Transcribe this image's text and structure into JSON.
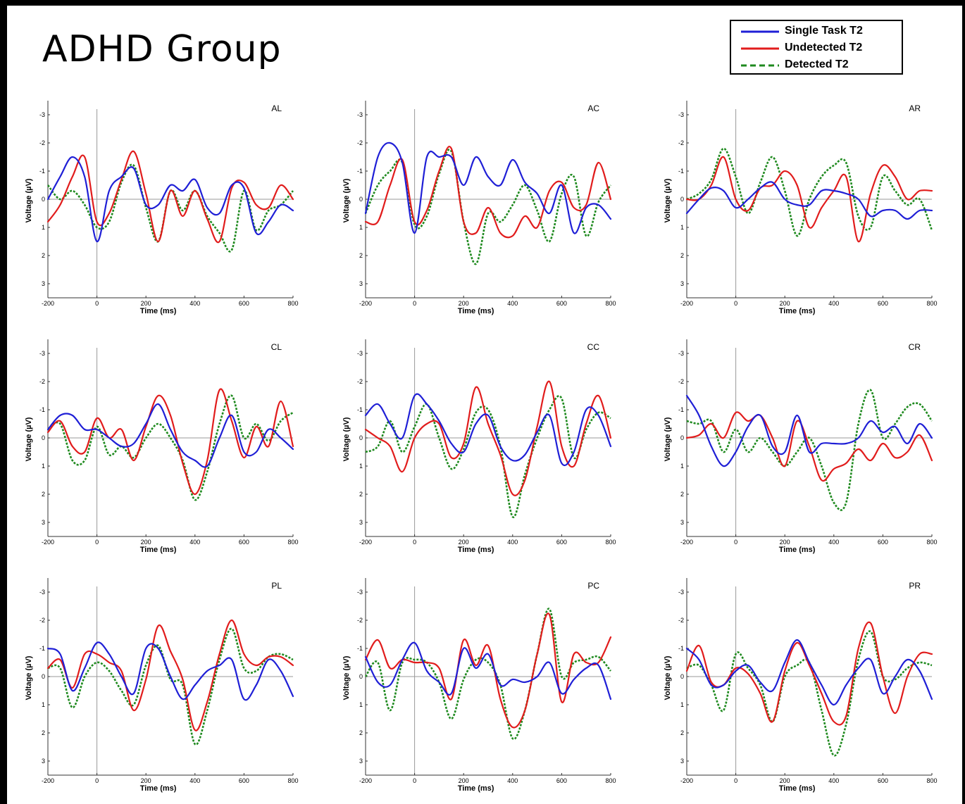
{
  "figure": {
    "title": "ADHD Group"
  },
  "legend": [
    {
      "label": "Single Task T2",
      "color": "#1f1fd6",
      "style": "solid"
    },
    {
      "label": "Undetected T2",
      "color": "#e11c1c",
      "style": "solid"
    },
    {
      "label": "Detected T2",
      "color": "#1f8a1f",
      "style": "dashed"
    }
  ],
  "chart_data": [
    {
      "type": "line",
      "title": "AL",
      "xlabel": "Time (ms)",
      "ylabel": "Voltage (µV)",
      "xlim": [
        -200,
        800
      ],
      "ylim": [
        -3.5,
        3.5
      ],
      "y_inverted": true,
      "xticks": [
        -200,
        0,
        200,
        400,
        600,
        800
      ],
      "yticks": [
        -3,
        -2,
        -1,
        0,
        1,
        2,
        3
      ],
      "x": [
        -200,
        -150,
        -100,
        -50,
        0,
        50,
        100,
        150,
        200,
        250,
        300,
        350,
        400,
        450,
        500,
        550,
        600,
        650,
        700,
        750,
        800
      ],
      "series": [
        {
          "name": "Single Task T2",
          "values": [
            0,
            -0.8,
            -1.5,
            -0.8,
            1.5,
            -0.3,
            -0.8,
            -1.1,
            0.2,
            0.2,
            -0.5,
            -0.3,
            -0.7,
            0.3,
            0.5,
            -0.5,
            -0.4,
            1.2,
            0.8,
            0.2,
            0.4
          ]
        },
        {
          "name": "Undetected T2",
          "values": [
            0.8,
            0.2,
            -0.8,
            -1.5,
            0.8,
            0.5,
            -0.7,
            -1.7,
            -0.2,
            1.5,
            -0.3,
            0.6,
            -0.3,
            0.7,
            1.5,
            -0.4,
            -0.6,
            0.2,
            0.3,
            -0.5,
            0
          ]
        },
        {
          "name": "Detected T2",
          "values": [
            -0.5,
            0,
            -0.3,
            0.2,
            1,
            0.8,
            -0.6,
            -1.2,
            0.3,
            1.5,
            -0.3,
            0.4,
            -0.3,
            0.6,
            1.2,
            1.8,
            -0.3,
            1.1,
            0.4,
            0.2,
            -0.3
          ]
        }
      ]
    },
    {
      "type": "line",
      "title": "AC",
      "xlabel": "Time (ms)",
      "ylabel": "Voltage (µV)",
      "xlim": [
        -200,
        800
      ],
      "ylim": [
        -3.5,
        3.5
      ],
      "y_inverted": true,
      "xticks": [
        -200,
        0,
        200,
        400,
        600,
        800
      ],
      "yticks": [
        -3,
        -2,
        -1,
        0,
        1,
        2,
        3
      ],
      "x": [
        -200,
        -150,
        -100,
        -50,
        0,
        50,
        100,
        150,
        200,
        250,
        300,
        350,
        400,
        450,
        500,
        550,
        600,
        650,
        700,
        750,
        800
      ],
      "series": [
        {
          "name": "Single Task T2",
          "values": [
            0.5,
            -1.5,
            -2,
            -1.3,
            1.2,
            -1.5,
            -1.5,
            -1.5,
            -0.5,
            -1.5,
            -0.8,
            -0.5,
            -1.4,
            -0.6,
            -0.2,
            0.5,
            -0.5,
            1.2,
            0.3,
            0.2,
            0.7
          ]
        },
        {
          "name": "Undetected T2",
          "values": [
            0.8,
            0.8,
            -0.5,
            -1.4,
            0.8,
            0.4,
            -1,
            -1.8,
            0.8,
            1.2,
            0.3,
            1.2,
            1.3,
            0.6,
            1,
            -0.3,
            -0.6,
            0.3,
            0.2,
            -1.3,
            0
          ]
        },
        {
          "name": "Detected T2",
          "values": [
            0.5,
            -0.5,
            -1,
            -1.3,
            0.9,
            0.6,
            -0.9,
            -1.7,
            0.8,
            2.3,
            0.5,
            0.8,
            0.2,
            -0.5,
            0.4,
            1.5,
            -0.2,
            -0.8,
            1.3,
            0.1,
            -0.5
          ]
        }
      ]
    },
    {
      "type": "line",
      "title": "AR",
      "xlabel": "Time (ms)",
      "ylabel": "Voltage (µV)",
      "xlim": [
        -200,
        800
      ],
      "ylim": [
        -3.5,
        3.5
      ],
      "y_inverted": true,
      "xticks": [
        -200,
        0,
        200,
        400,
        600,
        800
      ],
      "yticks": [
        -3,
        -2,
        -1,
        0,
        1,
        2,
        3
      ],
      "x": [
        -200,
        -150,
        -100,
        -50,
        0,
        50,
        100,
        150,
        200,
        250,
        300,
        350,
        400,
        450,
        500,
        550,
        600,
        650,
        700,
        750,
        800
      ],
      "series": [
        {
          "name": "Single Task T2",
          "values": [
            0.5,
            0,
            -0.4,
            -0.3,
            0.3,
            0,
            -0.4,
            -0.6,
            0,
            0.2,
            0.2,
            -0.3,
            -0.3,
            -0.2,
            0,
            0.6,
            0.4,
            0.4,
            0.7,
            0.4,
            0.4
          ]
        },
        {
          "name": "Undetected T2",
          "values": [
            0,
            0,
            -0.5,
            -1.5,
            0,
            0.4,
            -0.4,
            -0.5,
            -1,
            -0.5,
            1,
            0.3,
            -0.3,
            -0.8,
            1.5,
            -0.2,
            -1.2,
            -0.8,
            0,
            -0.3,
            -0.3
          ]
        },
        {
          "name": "Detected T2",
          "values": [
            0,
            -0.2,
            -0.7,
            -1.8,
            -0.8,
            0.5,
            -0.6,
            -1.5,
            -0.3,
            1.3,
            0,
            -0.8,
            -1.2,
            -1.3,
            0.6,
            1,
            -0.8,
            -0.3,
            0.2,
            0,
            1.1
          ]
        }
      ]
    },
    {
      "type": "line",
      "title": "CL",
      "xlabel": "Time (ms)",
      "ylabel": "Voltage (µV)",
      "xlim": [
        -200,
        800
      ],
      "ylim": [
        -3.5,
        3.5
      ],
      "y_inverted": true,
      "xticks": [
        -200,
        0,
        200,
        400,
        600,
        800
      ],
      "yticks": [
        -3,
        -2,
        -1,
        0,
        1,
        2,
        3
      ],
      "x": [
        -200,
        -150,
        -100,
        -50,
        0,
        50,
        100,
        150,
        200,
        250,
        300,
        350,
        400,
        450,
        500,
        550,
        600,
        650,
        700,
        750,
        800
      ],
      "series": [
        {
          "name": "Single Task T2",
          "values": [
            -0.3,
            -0.8,
            -0.8,
            -0.3,
            -0.3,
            0,
            0.3,
            0.2,
            -0.5,
            -1.2,
            -0.3,
            0.5,
            0.8,
            1,
            0,
            -0.8,
            0.5,
            0.5,
            -0.3,
            0,
            0.4
          ]
        },
        {
          "name": "Undetected T2",
          "values": [
            -0.2,
            -0.6,
            0.3,
            0.5,
            -0.7,
            0,
            -0.3,
            0.8,
            -0.4,
            -1.5,
            -0.8,
            0.9,
            2,
            0.8,
            -1.7,
            -0.6,
            0.7,
            -0.4,
            0.3,
            -1.3,
            0.3
          ]
        },
        {
          "name": "Detected T2",
          "values": [
            -0.3,
            -0.5,
            0.8,
            0.8,
            -0.4,
            0.6,
            0.3,
            0.7,
            0,
            -0.5,
            0,
            0.8,
            2.2,
            1.2,
            -0.5,
            -1.5,
            0,
            -0.5,
            0.1,
            -0.6,
            -0.9
          ]
        }
      ]
    },
    {
      "type": "line",
      "title": "CC",
      "xlabel": "Time (ms)",
      "ylabel": "Voltage (µV)",
      "xlim": [
        -200,
        800
      ],
      "ylim": [
        -3.5,
        3.5
      ],
      "y_inverted": true,
      "xticks": [
        -200,
        0,
        200,
        400,
        600,
        800
      ],
      "yticks": [
        -3,
        -2,
        -1,
        0,
        1,
        2,
        3
      ],
      "x": [
        -200,
        -150,
        -100,
        -50,
        0,
        50,
        100,
        150,
        200,
        250,
        300,
        350,
        400,
        450,
        500,
        550,
        600,
        650,
        700,
        750,
        800
      ],
      "series": [
        {
          "name": "Single Task T2",
          "values": [
            -0.8,
            -1.2,
            -0.5,
            0,
            -1.5,
            -1.2,
            -0.6,
            0.2,
            0.5,
            -0.5,
            -0.8,
            0.3,
            0.8,
            0.6,
            -0.2,
            -0.8,
            0.9,
            0.5,
            -1,
            -0.8,
            0.3
          ]
        },
        {
          "name": "Undetected T2",
          "values": [
            -0.3,
            0,
            0.3,
            1.2,
            0,
            -0.5,
            -0.5,
            0.7,
            0.2,
            -1.8,
            -0.5,
            0.6,
            2,
            1.5,
            -0.4,
            -2,
            0.3,
            1,
            -0.5,
            -1.5,
            0
          ]
        },
        {
          "name": "Detected T2",
          "values": [
            0.5,
            0.3,
            -0.6,
            0.5,
            -0.4,
            -1.2,
            0,
            1.1,
            0.4,
            -0.9,
            -1,
            0.3,
            2.8,
            1.3,
            0,
            -1,
            -1.4,
            0.7,
            -0.3,
            -0.9,
            -0.7
          ]
        }
      ]
    },
    {
      "type": "line",
      "title": "CR",
      "xlabel": "Time (ms)",
      "ylabel": "Voltage (µV)",
      "xlim": [
        -200,
        800
      ],
      "ylim": [
        -3.5,
        3.5
      ],
      "y_inverted": true,
      "xticks": [
        -200,
        0,
        200,
        400,
        600,
        800
      ],
      "yticks": [
        -3,
        -2,
        -1,
        0,
        1,
        2,
        3
      ],
      "x": [
        -200,
        -150,
        -100,
        -50,
        0,
        50,
        100,
        150,
        200,
        250,
        300,
        350,
        400,
        450,
        500,
        550,
        600,
        650,
        700,
        750,
        800
      ],
      "series": [
        {
          "name": "Single Task T2",
          "values": [
            -1.5,
            -0.8,
            0.3,
            1,
            0.5,
            -0.4,
            -0.8,
            0.3,
            0.5,
            -0.8,
            0.5,
            0.2,
            0.2,
            0.2,
            0,
            -0.6,
            -0.2,
            -0.4,
            0.2,
            -0.5,
            0
          ]
        },
        {
          "name": "Undetected T2",
          "values": [
            0,
            -0.1,
            -0.5,
            0,
            -0.9,
            -0.6,
            -0.8,
            0,
            1,
            -0.6,
            0.3,
            1.5,
            1.1,
            0.9,
            0.4,
            0.8,
            0.2,
            0.7,
            0.5,
            -0.1,
            0.8
          ]
        },
        {
          "name": "Detected T2",
          "values": [
            -0.6,
            -0.5,
            -0.6,
            0.5,
            -0.3,
            0.5,
            0,
            0.5,
            1,
            0.5,
            0,
            1,
            2.3,
            2.3,
            -0.5,
            -1.7,
            0,
            -0.5,
            -1.1,
            -1.2,
            -0.6
          ]
        }
      ]
    },
    {
      "type": "line",
      "title": "PL",
      "xlabel": "Time (ms)",
      "ylabel": "Voltage (µV)",
      "xlim": [
        -200,
        800
      ],
      "ylim": [
        -3.5,
        3.5
      ],
      "y_inverted": true,
      "xticks": [
        -200,
        0,
        200,
        400,
        600,
        800
      ],
      "yticks": [
        -3,
        -2,
        -1,
        0,
        1,
        2,
        3
      ],
      "x": [
        -200,
        -150,
        -100,
        -50,
        0,
        50,
        100,
        150,
        200,
        250,
        300,
        350,
        400,
        450,
        500,
        550,
        600,
        650,
        700,
        750,
        800
      ],
      "series": [
        {
          "name": "Single Task T2",
          "values": [
            -1,
            -0.8,
            0.5,
            -0.3,
            -1.2,
            -0.8,
            0,
            0.6,
            -1,
            -1,
            0,
            0.8,
            0.3,
            -0.2,
            -0.4,
            -0.6,
            0.8,
            0.3,
            -0.6,
            -0.2,
            0.7
          ]
        },
        {
          "name": "Undetected T2",
          "values": [
            -0.3,
            -0.6,
            0.4,
            -0.8,
            -0.8,
            -0.5,
            -0.2,
            1.2,
            0.1,
            -1.8,
            -0.9,
            0.1,
            1.9,
            0.9,
            -0.8,
            -2,
            -0.8,
            -0.4,
            -0.7,
            -0.7,
            -0.4
          ]
        },
        {
          "name": "Detected T2",
          "values": [
            -0.3,
            -0.3,
            1.1,
            0,
            -0.5,
            -0.2,
            0.5,
            1,
            -0.4,
            -1.1,
            0.1,
            0.3,
            2.4,
            1.2,
            -0.6,
            -1.7,
            -0.3,
            -0.2,
            -0.7,
            -0.8,
            -0.6
          ]
        }
      ]
    },
    {
      "type": "line",
      "title": "PC",
      "xlabel": "Time (ms)",
      "ylabel": "Voltage (µV)",
      "xlim": [
        -200,
        800
      ],
      "ylim": [
        -3.5,
        3.5
      ],
      "y_inverted": true,
      "xticks": [
        -200,
        0,
        200,
        400,
        600,
        800
      ],
      "yticks": [
        -3,
        -2,
        -1,
        0,
        1,
        2,
        3
      ],
      "x": [
        -200,
        -150,
        -100,
        -50,
        0,
        50,
        100,
        150,
        200,
        250,
        300,
        350,
        400,
        450,
        500,
        550,
        600,
        650,
        700,
        750,
        800
      ],
      "series": [
        {
          "name": "Single Task T2",
          "values": [
            -0.7,
            0.2,
            0.3,
            -0.6,
            -1.2,
            -0.2,
            0.2,
            0.6,
            -1,
            -0.3,
            -0.8,
            0.3,
            0.1,
            0.2,
            0,
            -0.5,
            0.6,
            0.1,
            -0.3,
            -0.4,
            0.8
          ]
        },
        {
          "name": "Undetected T2",
          "values": [
            -0.6,
            -1.3,
            -0.3,
            -0.6,
            -0.5,
            -0.5,
            -0.3,
            0.8,
            -1.3,
            -0.4,
            -1.1,
            0.8,
            1.8,
            1.2,
            -0.8,
            -2.2,
            0.9,
            -0.8,
            -0.5,
            -0.5,
            -1.4
          ]
        },
        {
          "name": "Detected T2",
          "values": [
            0,
            -0.5,
            1.2,
            -0.5,
            -0.6,
            -0.5,
            0.2,
            1.5,
            0.1,
            -0.6,
            -0.5,
            0.3,
            2.2,
            1.2,
            -0.8,
            -2.4,
            0,
            -0.5,
            -0.6,
            -0.7,
            -0.2
          ]
        }
      ]
    },
    {
      "type": "line",
      "title": "PR",
      "xlabel": "Time (ms)",
      "ylabel": "Voltage (µV)",
      "xlim": [
        -200,
        800
      ],
      "ylim": [
        -3.5,
        3.5
      ],
      "y_inverted": true,
      "xticks": [
        -200,
        0,
        200,
        400,
        600,
        800
      ],
      "yticks": [
        -3,
        -2,
        -1,
        0,
        1,
        2,
        3
      ],
      "x": [
        -200,
        -150,
        -100,
        -50,
        0,
        50,
        100,
        150,
        200,
        250,
        300,
        350,
        400,
        450,
        500,
        550,
        600,
        650,
        700,
        750,
        800
      ],
      "series": [
        {
          "name": "Single Task T2",
          "values": [
            -1,
            -0.6,
            0.3,
            0.3,
            -0.2,
            -0.4,
            0.2,
            0.5,
            -0.5,
            -1.3,
            -0.5,
            0.3,
            1,
            0.3,
            -0.3,
            -0.6,
            0.6,
            0,
            -0.6,
            -0.2,
            0.8
          ]
        },
        {
          "name": "Undetected T2",
          "values": [
            -0.2,
            -1.1,
            0.2,
            0.3,
            -0.3,
            -0.1,
            0.6,
            1.6,
            -0.2,
            -1.2,
            -0.4,
            0.6,
            1.6,
            1.4,
            -1,
            -1.9,
            0,
            1.3,
            0,
            -0.8,
            -0.8
          ]
        },
        {
          "name": "Detected T2",
          "values": [
            -0.3,
            -0.4,
            0.3,
            1.2,
            -0.8,
            -0.3,
            0.3,
            1.6,
            0,
            -0.4,
            -0.5,
            1.2,
            2.8,
            1.7,
            -0.6,
            -1.6,
            0,
            0.1,
            -0.3,
            -0.5,
            -0.4
          ]
        }
      ]
    }
  ]
}
